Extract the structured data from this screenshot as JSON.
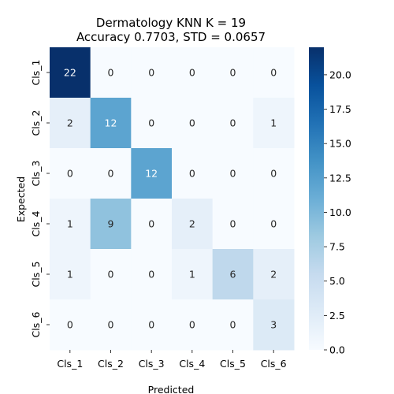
{
  "chart_data": {
    "type": "heatmap",
    "title_line1": "Dermatology KNN K = 19",
    "title_line2": "Accuracy 0.7703, STD = 0.0657",
    "xlabel": "Predicted",
    "ylabel": "Expected",
    "x_categories": [
      "Cls_1",
      "Cls_2",
      "Cls_3",
      "Cls_4",
      "Cls_5",
      "Cls_6"
    ],
    "y_categories": [
      "Cls_1",
      "Cls_2",
      "Cls_3",
      "Cls_4",
      "Cls_5",
      "Cls_6"
    ],
    "matrix": [
      [
        22,
        0,
        0,
        0,
        0,
        0
      ],
      [
        2,
        12,
        0,
        0,
        0,
        1
      ],
      [
        0,
        0,
        12,
        0,
        0,
        0
      ],
      [
        1,
        9,
        0,
        2,
        0,
        0
      ],
      [
        1,
        0,
        0,
        1,
        6,
        2
      ],
      [
        0,
        0,
        0,
        0,
        0,
        3
      ]
    ],
    "colorbar": {
      "min": 0,
      "max": 22,
      "ticks": [
        0.0,
        2.5,
        5.0,
        7.5,
        10.0,
        12.5,
        15.0,
        17.5,
        20.0
      ],
      "tick_labels": [
        "0.0",
        "2.5",
        "5.0",
        "7.5",
        "10.0",
        "12.5",
        "15.0",
        "17.5",
        "20.0"
      ]
    },
    "colormap": "Blues",
    "colors": {
      "low": "#f7fbff",
      "high": "#08306b"
    }
  }
}
